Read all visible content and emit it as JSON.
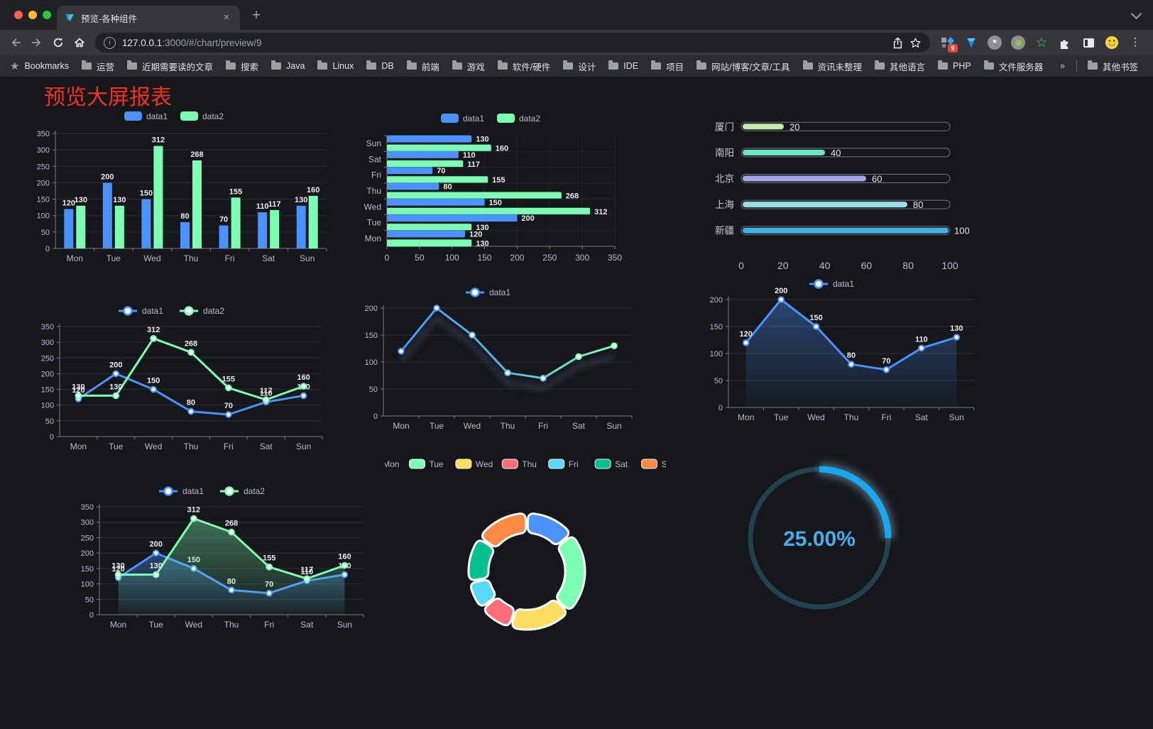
{
  "browser": {
    "tab_title": "预览-各种组件",
    "url_host": "127.0.0.1",
    "url_rest": ":3000/#/chart/preview/9",
    "extension_badge": "9",
    "bookmarks_label": "Bookmarks",
    "bookmarks": [
      "运营",
      "近期需要读的文章",
      "搜索",
      "Java",
      "Linux",
      "DB",
      "前端",
      "游戏",
      "软件/硬件",
      "设计",
      "IDE",
      "项目",
      "网站/博客/文章/工具",
      "资讯未整理",
      "其他语言",
      "PHP",
      "文件服务器"
    ],
    "bookmarks_overflow": "»",
    "other_bookmarks": "其他书签",
    "new_tab_label": "+",
    "close_tab_label": "×"
  },
  "page": {
    "title": "预览大屏报表",
    "title_color": "#f4301e",
    "background": "#15171b"
  },
  "colors": {
    "data1": "#4992ff",
    "data2": "#7cffb2",
    "axis_line": "#777b84",
    "grid_line": "#2b2f36",
    "tick_label": "#b9b8ce",
    "value_label": "#e9eaee"
  },
  "chart_data": [
    {
      "el": "bar-grouped",
      "type": "bar",
      "categories": [
        "Mon",
        "Tue",
        "Wed",
        "Thu",
        "Fri",
        "Sat",
        "Sun"
      ],
      "series": [
        {
          "name": "data1",
          "color": "#4992ff",
          "values": [
            120,
            200,
            150,
            80,
            70,
            110,
            130
          ]
        },
        {
          "name": "data2",
          "color": "#7cffb2",
          "values": [
            130,
            130,
            312,
            268,
            155,
            117,
            160
          ]
        }
      ],
      "ylim": [
        0,
        350
      ],
      "ytick": 50,
      "value_labels": true,
      "legend_position": "top"
    },
    {
      "el": "hbar-grouped",
      "type": "hbar",
      "categories": [
        "Mon",
        "Tue",
        "Wed",
        "Thu",
        "Fri",
        "Sat",
        "Sun"
      ],
      "categories_displayed_top_to_bottom": [
        "Sun",
        "Sat",
        "Fri",
        "Thu",
        "Wed",
        "Tue",
        "Mon"
      ],
      "series": [
        {
          "name": "data1",
          "color": "#4992ff",
          "values": [
            120,
            200,
            150,
            80,
            70,
            110,
            130
          ]
        },
        {
          "name": "data2",
          "color": "#7cffb2",
          "values": [
            130,
            130,
            312,
            268,
            155,
            117,
            160
          ]
        }
      ],
      "xlim": [
        0,
        350
      ],
      "xtick": 50,
      "value_labels": true,
      "legend_position": "top"
    },
    {
      "el": "capsule",
      "type": "capsule",
      "categories": [
        "厦门",
        "南阳",
        "北京",
        "上海",
        "新疆"
      ],
      "values": [
        20,
        40,
        60,
        80,
        100
      ],
      "colors": [
        "#c4ebad",
        "#6be6c1",
        "#a0a7e6",
        "#96dee8",
        "#3fb1e3"
      ],
      "xlim": [
        0,
        100
      ],
      "xticks": [
        0,
        20,
        40,
        60,
        80,
        100
      ],
      "value_labels": true
    },
    {
      "el": "line-two",
      "type": "line",
      "categories": [
        "Mon",
        "Tue",
        "Wed",
        "Thu",
        "Fri",
        "Sat",
        "Sun"
      ],
      "series": [
        {
          "name": "data1",
          "color": "#4992ff",
          "values": [
            120,
            200,
            150,
            80,
            70,
            110,
            130
          ]
        },
        {
          "name": "data2",
          "color": "#7cffb2",
          "values": [
            130,
            130,
            312,
            268,
            155,
            117,
            160
          ]
        }
      ],
      "ylim": [
        0,
        350
      ],
      "ytick": 50,
      "value_labels": true,
      "legend_position": "top"
    },
    {
      "el": "line-gradient",
      "type": "line",
      "categories": [
        "Mon",
        "Tue",
        "Wed",
        "Thu",
        "Fri",
        "Sat",
        "Sun"
      ],
      "series": [
        {
          "name": "data1",
          "color": "#4992ff",
          "gradient": [
            "#4992ff",
            "#58b7e8",
            "#7cffb2"
          ],
          "values": [
            120,
            200,
            150,
            80,
            70,
            110,
            130
          ]
        }
      ],
      "ylim": [
        0,
        200
      ],
      "ytick": 50,
      "value_labels": false,
      "shadow": true,
      "legend_position": "top"
    },
    {
      "el": "area-single",
      "type": "line",
      "categories": [
        "Mon",
        "Tue",
        "Wed",
        "Thu",
        "Fri",
        "Sat",
        "Sun"
      ],
      "series": [
        {
          "name": "data1",
          "color": "#4992ff",
          "area": true,
          "values": [
            120,
            200,
            150,
            80,
            70,
            110,
            130
          ]
        }
      ],
      "ylim": [
        0,
        200
      ],
      "ytick": 50,
      "value_labels": true,
      "legend_position": "top"
    },
    {
      "el": "area-two",
      "type": "line",
      "categories": [
        "Mon",
        "Tue",
        "Wed",
        "Thu",
        "Fri",
        "Sat",
        "Sun"
      ],
      "series": [
        {
          "name": "data1",
          "color": "#4992ff",
          "area": true,
          "values": [
            120,
            200,
            150,
            80,
            70,
            110,
            130
          ]
        },
        {
          "name": "data2",
          "color": "#7cffb2",
          "area": true,
          "values": [
            130,
            130,
            312,
            268,
            155,
            117,
            160
          ]
        }
      ],
      "ylim": [
        0,
        350
      ],
      "ytick": 50,
      "value_labels": true,
      "legend_position": "top"
    },
    {
      "el": "donut",
      "type": "pie",
      "categories": [
        "Mon",
        "Tue",
        "Wed",
        "Thu",
        "Fri",
        "Sat",
        "Sun"
      ],
      "values": [
        120,
        200,
        150,
        80,
        70,
        110,
        130
      ],
      "colors": [
        "#4992ff",
        "#7cffb2",
        "#fddd60",
        "#ff6e76",
        "#58d9f9",
        "#05c091",
        "#ff8a45"
      ],
      "inner_radius_ratio": 0.66,
      "legend_position": "top"
    },
    {
      "el": "gauge",
      "type": "gauge",
      "value": 25,
      "max": 100,
      "label": "25.00%",
      "arc_color": "#18a7f2",
      "track_color": "#21424e",
      "text_color": "#4aabec"
    }
  ]
}
